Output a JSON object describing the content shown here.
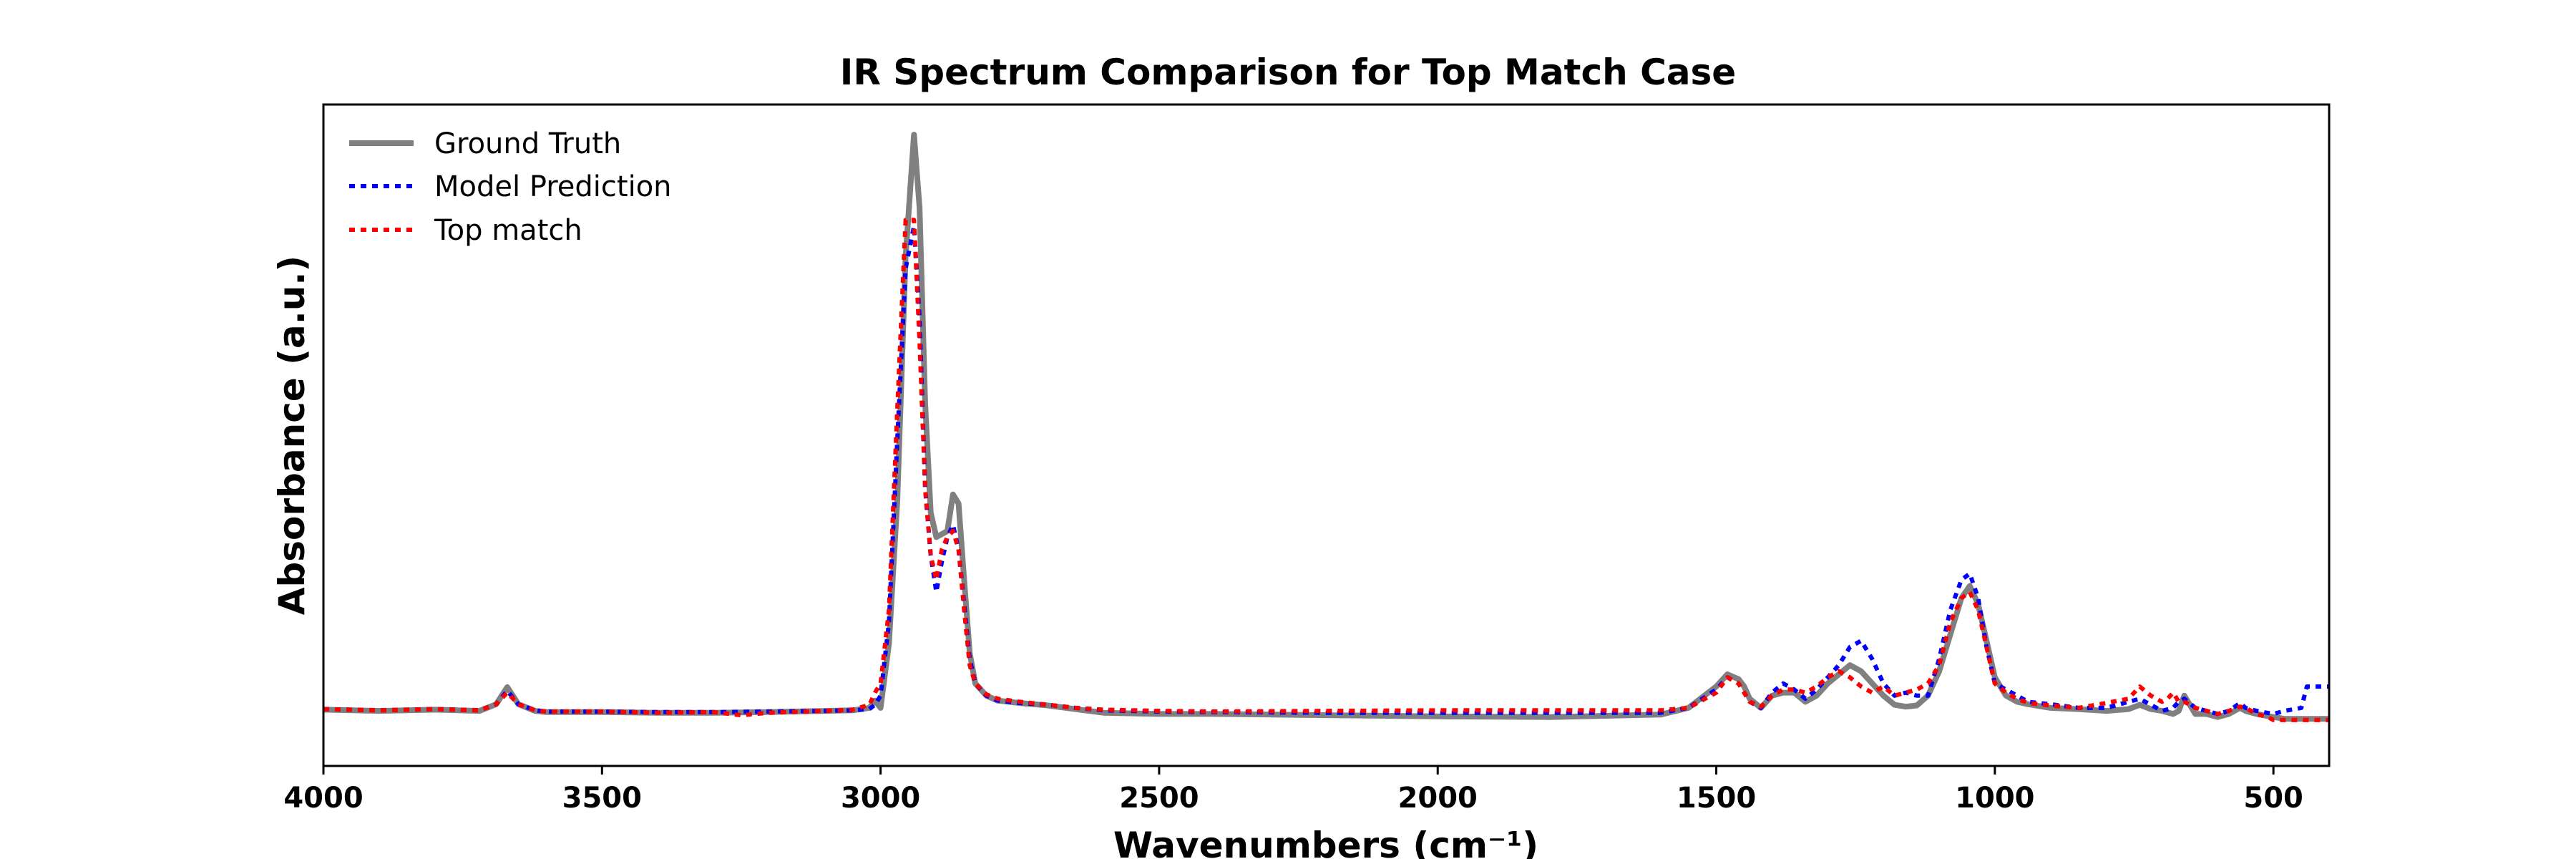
{
  "chart_data": {
    "type": "line",
    "title": "IR Spectrum Comparison for Top Match Case",
    "xlabel": "Wavenumbers (cm⁻¹)",
    "ylabel": "Absorbance (a.u.)",
    "xlim": [
      4000,
      400
    ],
    "ylim": [
      0,
      1.0
    ],
    "x_reversed": true,
    "y_ticks_shown": false,
    "grid": false,
    "legend_position": "top-left",
    "xticks": [
      {
        "value": 4000,
        "label": "4000"
      },
      {
        "value": 3500,
        "label": "3500"
      },
      {
        "value": 3000,
        "label": "3000"
      },
      {
        "value": 2500,
        "label": "2500"
      },
      {
        "value": 2000,
        "label": "2000"
      },
      {
        "value": 1500,
        "label": "1500"
      },
      {
        "value": 1000,
        "label": "1000"
      },
      {
        "value": 500,
        "label": "500"
      }
    ],
    "series": [
      {
        "name": "Ground Truth",
        "color": "#808080",
        "dash": "solid",
        "x": [
          4000,
          3900,
          3800,
          3720,
          3690,
          3670,
          3650,
          3620,
          3600,
          3500,
          3400,
          3300,
          3200,
          3100,
          3050,
          3020,
          3010,
          3000,
          2985,
          2970,
          2955,
          2940,
          2930,
          2920,
          2910,
          2900,
          2890,
          2880,
          2870,
          2860,
          2850,
          2840,
          2830,
          2810,
          2790,
          2750,
          2700,
          2650,
          2600,
          2500,
          2400,
          2200,
          2000,
          1800,
          1600,
          1550,
          1500,
          1480,
          1460,
          1450,
          1440,
          1420,
          1400,
          1380,
          1360,
          1340,
          1320,
          1300,
          1280,
          1260,
          1240,
          1220,
          1200,
          1180,
          1160,
          1140,
          1120,
          1100,
          1080,
          1060,
          1045,
          1030,
          1015,
          1000,
          980,
          960,
          940,
          900,
          850,
          800,
          760,
          740,
          720,
          700,
          680,
          670,
          660,
          640,
          620,
          600,
          580,
          560,
          550,
          530,
          500,
          480,
          450,
          420,
          400
        ],
        "y": [
          0.057,
          0.055,
          0.057,
          0.055,
          0.066,
          0.094,
          0.066,
          0.055,
          0.053,
          0.053,
          0.052,
          0.052,
          0.053,
          0.055,
          0.056,
          0.06,
          0.072,
          0.06,
          0.165,
          0.4,
          0.8,
          1.0,
          0.88,
          0.56,
          0.38,
          0.34,
          0.345,
          0.35,
          0.41,
          0.395,
          0.27,
          0.15,
          0.1,
          0.08,
          0.072,
          0.068,
          0.064,
          0.058,
          0.052,
          0.05,
          0.05,
          0.048,
          0.046,
          0.045,
          0.049,
          0.06,
          0.095,
          0.115,
          0.107,
          0.095,
          0.075,
          0.06,
          0.08,
          0.085,
          0.085,
          0.07,
          0.08,
          0.1,
          0.115,
          0.13,
          0.12,
          0.1,
          0.08,
          0.065,
          0.062,
          0.064,
          0.08,
          0.12,
          0.18,
          0.24,
          0.26,
          0.23,
          0.17,
          0.11,
          0.08,
          0.07,
          0.066,
          0.06,
          0.058,
          0.055,
          0.058,
          0.065,
          0.058,
          0.055,
          0.05,
          0.055,
          0.08,
          0.05,
          0.05,
          0.045,
          0.05,
          0.06,
          0.055,
          0.05,
          0.045,
          0.042,
          0.042,
          0.042,
          0.042
        ]
      },
      {
        "name": "Model Prediction",
        "color": "#0000ff",
        "dash": "dotted",
        "x": [
          4000,
          3900,
          3800,
          3720,
          3690,
          3670,
          3650,
          3620,
          3600,
          3500,
          3400,
          3300,
          3200,
          3100,
          3050,
          3020,
          3010,
          3000,
          2985,
          2970,
          2955,
          2940,
          2930,
          2920,
          2910,
          2900,
          2890,
          2880,
          2870,
          2860,
          2850,
          2840,
          2830,
          2810,
          2790,
          2750,
          2700,
          2650,
          2600,
          2500,
          2400,
          2200,
          2000,
          1800,
          1600,
          1550,
          1500,
          1480,
          1460,
          1450,
          1440,
          1420,
          1400,
          1380,
          1360,
          1340,
          1320,
          1300,
          1280,
          1260,
          1240,
          1220,
          1200,
          1180,
          1160,
          1140,
          1120,
          1100,
          1080,
          1060,
          1045,
          1030,
          1015,
          1000,
          980,
          960,
          940,
          900,
          850,
          800,
          760,
          740,
          720,
          700,
          680,
          670,
          660,
          640,
          620,
          600,
          580,
          560,
          550,
          530,
          500,
          480,
          450,
          440,
          430,
          420,
          400
        ],
        "y": [
          0.058,
          0.056,
          0.058,
          0.056,
          0.066,
          0.088,
          0.066,
          0.056,
          0.054,
          0.054,
          0.053,
          0.053,
          0.054,
          0.055,
          0.056,
          0.058,
          0.065,
          0.08,
          0.2,
          0.5,
          0.78,
          0.85,
          0.7,
          0.42,
          0.31,
          0.25,
          0.3,
          0.34,
          0.36,
          0.32,
          0.23,
          0.14,
          0.1,
          0.08,
          0.072,
          0.068,
          0.065,
          0.06,
          0.056,
          0.054,
          0.053,
          0.052,
          0.052,
          0.052,
          0.052,
          0.06,
          0.09,
          0.11,
          0.1,
          0.085,
          0.07,
          0.06,
          0.085,
          0.1,
          0.09,
          0.075,
          0.09,
          0.11,
          0.13,
          0.16,
          0.17,
          0.14,
          0.1,
          0.08,
          0.085,
          0.08,
          0.08,
          0.14,
          0.22,
          0.27,
          0.28,
          0.24,
          0.16,
          0.1,
          0.09,
          0.08,
          0.07,
          0.066,
          0.06,
          0.06,
          0.07,
          0.075,
          0.065,
          0.055,
          0.06,
          0.07,
          0.075,
          0.06,
          0.055,
          0.05,
          0.055,
          0.068,
          0.06,
          0.055,
          0.05,
          0.055,
          0.06,
          0.095,
          0.095,
          0.095,
          0.095
        ]
      },
      {
        "name": "Top match",
        "color": "#ff0000",
        "dash": "dotted",
        "x": [
          4000,
          3900,
          3800,
          3720,
          3690,
          3670,
          3650,
          3620,
          3600,
          3500,
          3400,
          3300,
          3250,
          3200,
          3100,
          3050,
          3020,
          3010,
          3000,
          2985,
          2970,
          2955,
          2940,
          2930,
          2920,
          2910,
          2900,
          2890,
          2880,
          2870,
          2860,
          2850,
          2840,
          2830,
          2810,
          2790,
          2750,
          2700,
          2650,
          2600,
          2500,
          2400,
          2200,
          2000,
          1800,
          1600,
          1550,
          1500,
          1480,
          1460,
          1450,
          1440,
          1420,
          1400,
          1380,
          1360,
          1340,
          1320,
          1300,
          1280,
          1260,
          1240,
          1220,
          1200,
          1180,
          1160,
          1140,
          1120,
          1100,
          1080,
          1060,
          1045,
          1030,
          1015,
          1000,
          980,
          960,
          940,
          900,
          850,
          800,
          760,
          740,
          720,
          700,
          690,
          680,
          670,
          660,
          640,
          620,
          600,
          580,
          560,
          550,
          530,
          510,
          500,
          480,
          450,
          420,
          400
        ],
        "y": [
          0.058,
          0.056,
          0.058,
          0.056,
          0.066,
          0.085,
          0.066,
          0.056,
          0.054,
          0.054,
          0.052,
          0.053,
          0.048,
          0.052,
          0.055,
          0.057,
          0.065,
          0.085,
          0.1,
          0.22,
          0.55,
          0.86,
          0.86,
          0.66,
          0.42,
          0.31,
          0.27,
          0.32,
          0.34,
          0.35,
          0.32,
          0.22,
          0.13,
          0.1,
          0.082,
          0.075,
          0.07,
          0.065,
          0.06,
          0.057,
          0.055,
          0.054,
          0.055,
          0.056,
          0.056,
          0.056,
          0.06,
          0.085,
          0.11,
          0.1,
          0.085,
          0.07,
          0.062,
          0.08,
          0.09,
          0.09,
          0.085,
          0.095,
          0.11,
          0.12,
          0.11,
          0.095,
          0.085,
          0.095,
          0.08,
          0.085,
          0.09,
          0.1,
          0.13,
          0.2,
          0.24,
          0.25,
          0.22,
          0.16,
          0.1,
          0.085,
          0.075,
          0.068,
          0.064,
          0.06,
          0.068,
          0.075,
          0.095,
          0.08,
          0.07,
          0.075,
          0.085,
          0.07,
          0.07,
          0.06,
          0.055,
          0.05,
          0.055,
          0.062,
          0.06,
          0.05,
          0.045,
          0.04,
          0.04,
          0.04,
          0.04,
          0.04
        ]
      }
    ]
  }
}
